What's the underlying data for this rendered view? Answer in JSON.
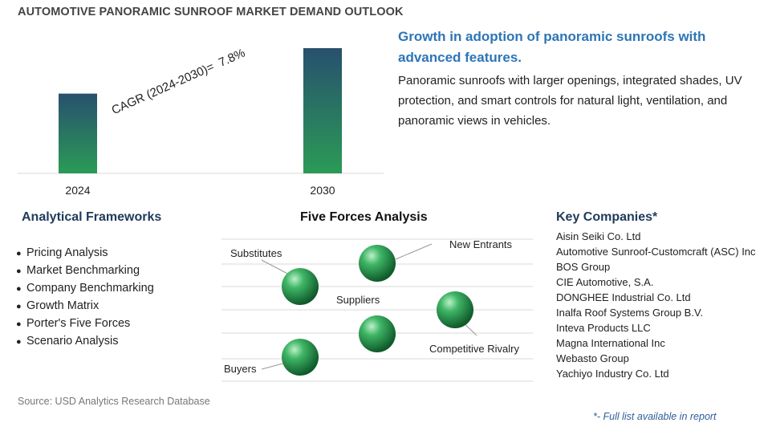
{
  "title": "AUTOMOTIVE PANORAMIC SUNROOF MARKET DEMAND OUTLOOK",
  "chart_data": {
    "type": "bar",
    "categories": [
      "2024",
      "2030"
    ],
    "values": [
      1.0,
      1.57
    ],
    "colors": {
      "bar_top": "#28506e",
      "bar_bottom": "#2a9b56"
    },
    "annotation": {
      "label": "CAGR (2024-2030)=",
      "value": "7.8%"
    }
  },
  "headline": "Growth in adoption of panoramic sunroofs with advanced features.",
  "description": "Panoramic sunroofs with larger openings, integrated shades, UV protection, and smart controls for natural light, ventilation, and panoramic views in vehicles.",
  "frameworks": {
    "title": "Analytical Frameworks",
    "items": [
      "Pricing Analysis",
      "Market Benchmarking",
      "Company Benchmarking",
      "Growth Matrix",
      "Porter's Five Forces",
      "Scenario Analysis"
    ]
  },
  "five_forces": {
    "title": "Five Forces Analysis",
    "labels": {
      "substitutes": "Substitutes",
      "new_entrants": "New Entrants",
      "suppliers": "Suppliers",
      "competitive_rivalry": "Competitive Rivalry",
      "buyers": "Buyers"
    },
    "sphere_color": "#2e9a52"
  },
  "companies": {
    "title": "Key Companies*",
    "items": [
      "Aisin Seiki Co. Ltd",
      "Automotive Sunroof-Customcraft (ASC) Inc",
      "BOS Group",
      "CIE Automotive, S.A.",
      "DONGHEE Industrial Co. Ltd",
      "Inalfa Roof Systems Group B.V.",
      "Inteva Products LLC",
      "Magna International Inc",
      "Webasto Group",
      "Yachiyo Industry Co. Ltd"
    ],
    "footnote": "*- Full list available in report"
  },
  "source": "Source: USD Analytics Research Database"
}
